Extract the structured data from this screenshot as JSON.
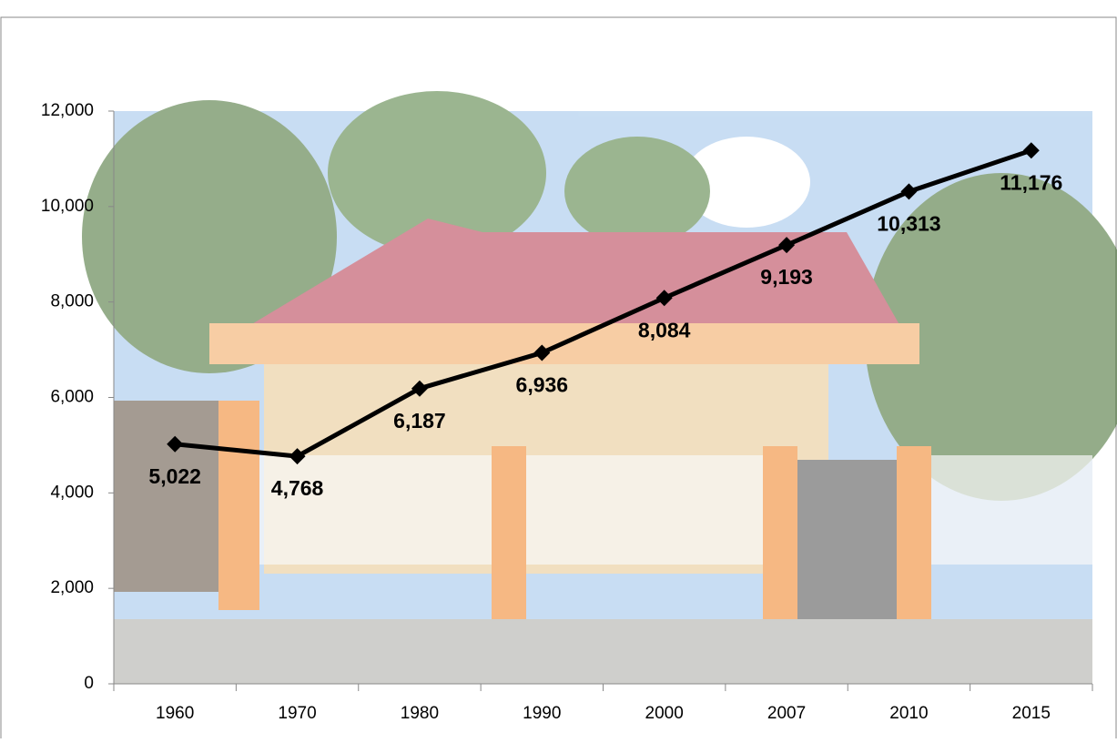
{
  "chart_data": {
    "type": "line",
    "categories": [
      "1960",
      "1970",
      "1980",
      "1990",
      "2000",
      "2007",
      "2010",
      "2015"
    ],
    "series": [
      {
        "color": "#000000",
        "values": [
          5022,
          4768,
          6187,
          6936,
          8084,
          9193,
          10313,
          11176
        ],
        "value_labels": [
          "5,022",
          "4,768",
          "6,187",
          "6,936",
          "8,084",
          "9,193",
          "10,313",
          "11,176"
        ]
      }
    ],
    "ylim": [
      0,
      12000
    ],
    "yticks": [
      0,
      {
        "value": 2000,
        "label": "2,000"
      },
      {
        "value": 4000,
        "label": "4,000"
      },
      {
        "value": 6000,
        "label": "6,000"
      },
      {
        "value": 8000,
        "label": "8,000"
      },
      {
        "value": 10000,
        "label": "10,000"
      },
      {
        "value": 12000,
        "label": "12,000"
      }
    ],
    "grid": false
  }
}
